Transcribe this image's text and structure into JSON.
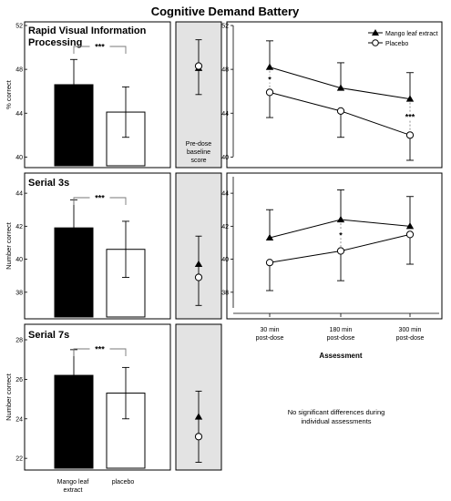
{
  "title": "Cognitive Demand Battery",
  "pre_dose_label": [
    "Pre-dose",
    "baseline",
    "score"
  ],
  "note": [
    "No significant differences during",
    "individual assessments"
  ],
  "legend": {
    "mango": "Mango leaf extract",
    "placebo": "Placebo"
  },
  "colors": {
    "mango": "#000000",
    "placebo": "#ffffff",
    "baseline_panel": "#e3e3e3"
  },
  "chart_data": [
    {
      "panel": "rvip-bars",
      "type": "bar",
      "title": [
        "Rapid Visual Information",
        "Processing"
      ],
      "ylabel": "% correct",
      "categories": [
        "Mango leaf extract",
        "placebo"
      ],
      "values": [
        46.6,
        44.1
      ],
      "errors": [
        2.3,
        2.3
      ],
      "ylim": [
        39.2,
        52
      ],
      "yticks": [
        40,
        44,
        48,
        52
      ],
      "significance": "***"
    },
    {
      "panel": "rvip-baseline",
      "type": "scatter",
      "series": [
        {
          "name": "Mango leaf extract",
          "values": [
            48.1
          ],
          "errors": [
            2.4
          ]
        },
        {
          "name": "Placebo",
          "values": [
            48.3
          ],
          "errors": [
            2.4
          ]
        }
      ],
      "ylim": [
        39.2,
        52
      ]
    },
    {
      "panel": "rvip-time",
      "type": "line",
      "categories": [
        "30 min post-dose",
        "180 min post-dose",
        "300 min post-dose"
      ],
      "series": [
        {
          "name": "Mango leaf extract",
          "values": [
            48.2,
            46.3,
            45.3
          ],
          "errors": [
            2.4,
            2.3,
            2.4
          ]
        },
        {
          "name": "Placebo",
          "values": [
            45.9,
            44.2,
            42.0
          ],
          "errors": [
            2.3,
            2.4,
            2.3
          ]
        }
      ],
      "ylim": [
        39.2,
        52
      ],
      "yticks": [
        40,
        44,
        48,
        52
      ],
      "significance": [
        "*",
        "",
        "***"
      ]
    },
    {
      "panel": "serial3-bars",
      "type": "bar",
      "title": [
        "Serial 3s"
      ],
      "ylabel": "Number correct",
      "categories": [
        "Mango leaf extract",
        "placebo"
      ],
      "values": [
        41.9,
        40.6
      ],
      "errors": [
        1.7,
        1.7
      ],
      "ylim": [
        36.5,
        45
      ],
      "yticks": [
        38,
        40,
        42,
        44
      ],
      "significance": "***"
    },
    {
      "panel": "serial3-baseline",
      "type": "scatter",
      "series": [
        {
          "name": "Mango leaf extract",
          "values": [
            39.7
          ],
          "errors": [
            1.7
          ]
        },
        {
          "name": "Placebo",
          "values": [
            38.9
          ],
          "errors": [
            1.7
          ]
        }
      ],
      "ylim": [
        36.5,
        45
      ]
    },
    {
      "panel": "serial3-time",
      "type": "line",
      "categories": [
        "30 min post-dose",
        "180 min post-dose",
        "300 min post-dose"
      ],
      "series": [
        {
          "name": "Mango leaf extract",
          "values": [
            41.3,
            42.4,
            42.0
          ],
          "errors": [
            1.7,
            1.8,
            1.8
          ]
        },
        {
          "name": "Placebo",
          "values": [
            39.8,
            40.5,
            41.5
          ],
          "errors": [
            1.7,
            1.8,
            1.8
          ]
        }
      ],
      "ylim": [
        36.5,
        45
      ],
      "yticks": [
        38,
        40,
        42,
        44
      ],
      "significance": [
        "",
        "*",
        ""
      ]
    },
    {
      "panel": "serial7-bars",
      "type": "bar",
      "title": [
        "Serial 7s"
      ],
      "ylabel": "Number correct",
      "categories": [
        "Mango leaf extract",
        "placebo"
      ],
      "values": [
        26.2,
        25.3
      ],
      "errors": [
        1.3,
        1.3
      ],
      "ylim": [
        21.5,
        28.6
      ],
      "yticks": [
        22,
        24,
        26,
        28
      ],
      "significance": "***"
    },
    {
      "panel": "serial7-baseline",
      "type": "scatter",
      "series": [
        {
          "name": "Mango leaf extract",
          "values": [
            24.1
          ],
          "errors": [
            1.3
          ]
        },
        {
          "name": "Placebo",
          "values": [
            23.1
          ],
          "errors": [
            1.3
          ]
        }
      ],
      "ylim": [
        21.5,
        28.6
      ]
    }
  ],
  "xaxis_label": "Assessment"
}
